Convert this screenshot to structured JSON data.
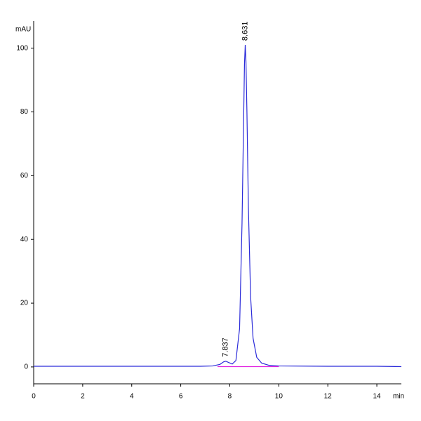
{
  "chart_data": {
    "type": "line",
    "y_label": "mAU",
    "x_label": "min",
    "xlim": [
      0,
      15
    ],
    "ylim": [
      -5.3,
      108.5
    ],
    "xticks": [
      0,
      2,
      4,
      6,
      8,
      10,
      12,
      14
    ],
    "yticks": [
      0,
      20,
      40,
      60,
      80,
      100
    ],
    "series": [
      {
        "color": "#2b2bd9",
        "x": [
          0,
          6.8,
          7.3,
          7.6,
          7.75,
          7.837,
          7.95,
          8.1,
          8.25,
          8.4,
          8.5,
          8.56,
          8.6,
          8.631,
          8.66,
          8.7,
          8.76,
          8.85,
          8.95,
          9.1,
          9.3,
          9.6,
          10,
          12,
          14,
          15
        ],
        "values": [
          0.2,
          0.2,
          0.3,
          0.8,
          1.6,
          1.8,
          1.4,
          0.9,
          2,
          12,
          45,
          75,
          95,
          101,
          96,
          80,
          50,
          22,
          9,
          3,
          1.2,
          0.5,
          0.3,
          0.2,
          0.2,
          0.1
        ]
      },
      {
        "color": "#e020e0",
        "x": [
          7.5,
          10
        ],
        "values": [
          0.1,
          0.1
        ]
      }
    ],
    "annotations": [
      {
        "text": "7.837",
        "x": 7.837,
        "y": 1.8
      },
      {
        "text": "8.631",
        "x": 8.631,
        "y": 101
      }
    ]
  }
}
